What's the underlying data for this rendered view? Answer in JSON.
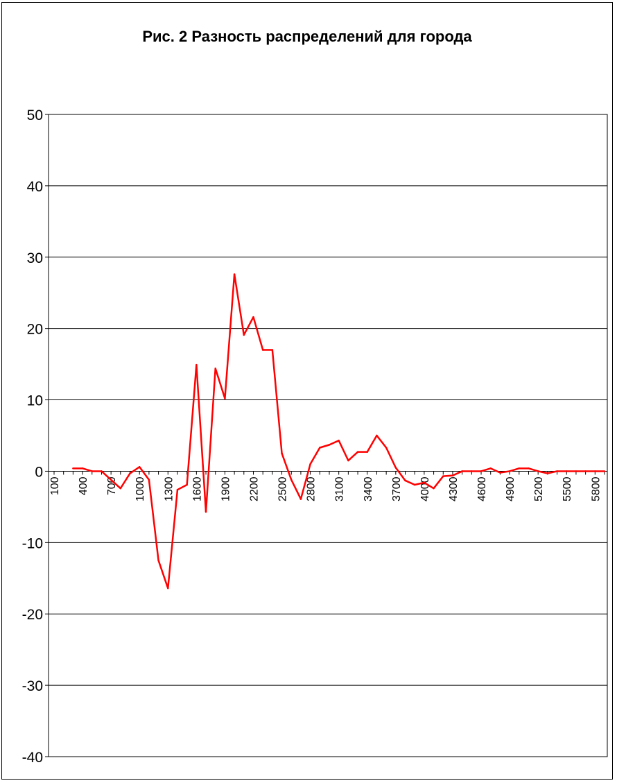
{
  "chart_data": {
    "type": "line",
    "title": "Рис. 2 Разность распределений для города",
    "xlabel": "",
    "ylabel": "",
    "ylim": [
      -40,
      50
    ],
    "yticks": [
      50,
      40,
      30,
      20,
      10,
      0,
      -10,
      -20,
      -30,
      -40
    ],
    "x_start": 100,
    "x_step": 100,
    "x_tick_labels": [
      "100",
      "400",
      "700",
      "1000",
      "1300",
      "1600",
      "1900",
      "2200",
      "2500",
      "2800",
      "3100",
      "3400",
      "3700",
      "4000",
      "4300",
      "4600",
      "4900",
      "5200",
      "5500",
      "5800"
    ],
    "grid": true,
    "legend": "none",
    "line_color": "#ff0000",
    "series": [
      {
        "values": [
          null,
          null,
          0.4,
          0.4,
          0,
          0,
          -1.2,
          -2.4,
          -0.3,
          0.6,
          -1.2,
          -12.5,
          -16.4,
          -2.6,
          -1.9,
          14.9,
          -5.7,
          14.4,
          10.2,
          27.6,
          19.1,
          21.6,
          17.0,
          17.0,
          2.5,
          -1.2,
          -3.9,
          1.0,
          3.3,
          3.7,
          4.3,
          1.5,
          2.7,
          2.7,
          5.0,
          3.3,
          0.5,
          -1.3,
          -1.9,
          -1.6,
          -2.4,
          -0.7,
          -0.6,
          0,
          0,
          0,
          0.4,
          -0.2,
          0,
          0.4,
          0.4,
          0,
          -0.3,
          0,
          0,
          0,
          0,
          0,
          0
        ]
      }
    ]
  }
}
